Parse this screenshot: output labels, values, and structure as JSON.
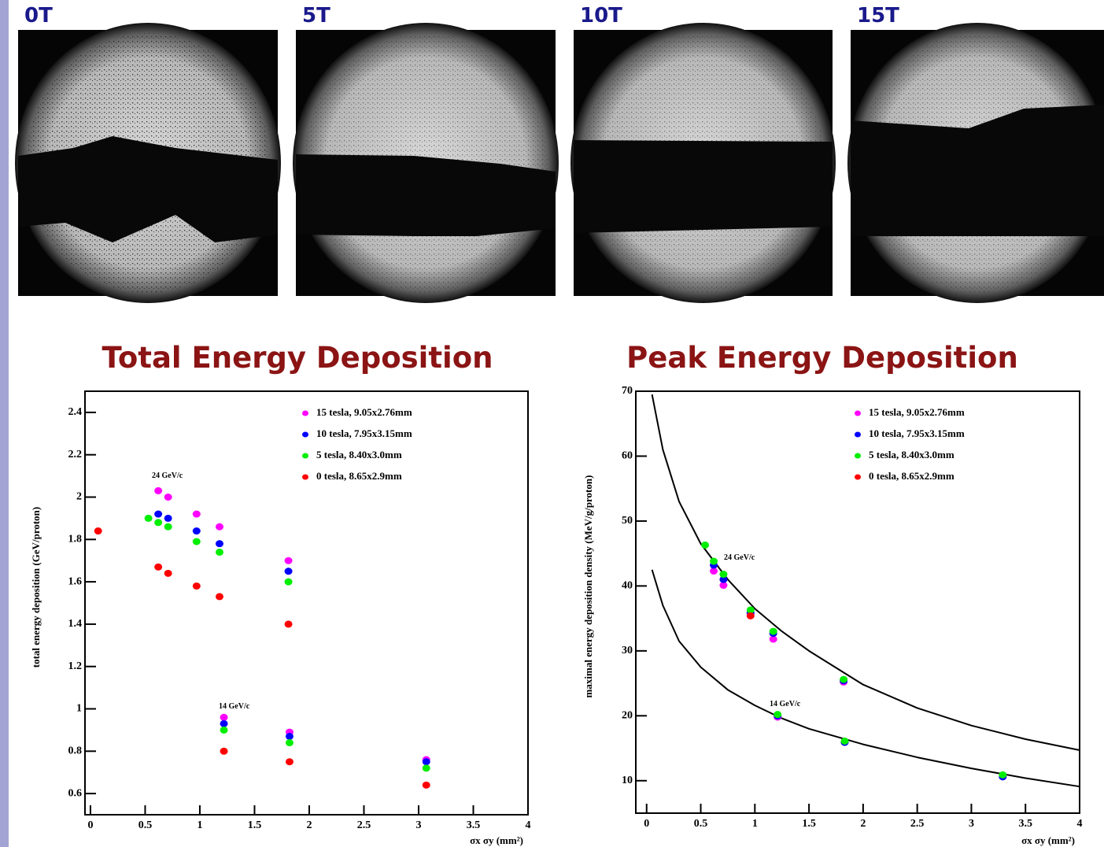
{
  "images": [
    {
      "label": "0T"
    },
    {
      "label": "5T"
    },
    {
      "label": "10T"
    },
    {
      "label": "15T"
    }
  ],
  "chart_data": [
    {
      "type": "scatter",
      "title": "Total Energy Deposition",
      "y_label": "total energy deposition (GeV/proton)",
      "x_label": "σx σy (mm²)",
      "xlim": [
        -0.05,
        4
      ],
      "xticks": [
        0,
        0.5,
        1,
        1.5,
        2,
        2.5,
        3,
        3.5,
        4
      ],
      "ylim": [
        0.5,
        2.5
      ],
      "yticks": [
        0.6,
        0.8,
        1,
        1.2,
        1.4,
        1.6,
        1.8,
        2,
        2.2,
        2.4
      ],
      "grid": false,
      "legend": "upper right",
      "annotations": [
        "24 GeV/c",
        "14 GeV/c"
      ],
      "series": [
        {
          "name": "15 tesla, 9.05x2.76mm",
          "color": "#ff00ff",
          "x": [
            0.62,
            0.71,
            0.97,
            1.18,
            1.81,
            1.22,
            1.82,
            3.07
          ],
          "values": [
            2.03,
            2.0,
            1.92,
            1.86,
            1.7,
            0.96,
            0.89,
            0.76
          ]
        },
        {
          "name": "10 tesla, 7.95x3.15mm",
          "color": "#0000ff",
          "x": [
            0.62,
            0.71,
            0.97,
            1.18,
            1.81,
            1.22,
            1.82,
            3.07
          ],
          "values": [
            1.92,
            1.9,
            1.84,
            1.78,
            1.65,
            0.93,
            0.87,
            0.75
          ]
        },
        {
          "name": "5 tesla, 8.40x3.0mm",
          "color": "#00ee00",
          "x": [
            0.53,
            0.62,
            0.71,
            0.97,
            1.18,
            1.81,
            1.22,
            1.82,
            3.07
          ],
          "values": [
            1.9,
            1.88,
            1.86,
            1.79,
            1.74,
            1.6,
            0.9,
            0.84,
            0.72
          ]
        },
        {
          "name": "0 tesla, 8.65x2.9mm",
          "color": "#ff0000",
          "x": [
            0.07,
            0.62,
            0.71,
            0.97,
            1.18,
            1.81,
            1.22,
            1.82,
            3.07
          ],
          "values": [
            1.84,
            1.67,
            1.64,
            1.58,
            1.53,
            1.4,
            0.8,
            0.75,
            0.64
          ]
        }
      ]
    },
    {
      "type": "scatter",
      "title": "Peak Energy Deposition",
      "y_label": "maximal energy deposition density (MeV/g/proton)",
      "x_label": "σx σy (mm²)",
      "xlim": [
        -0.1,
        4
      ],
      "xticks": [
        0,
        0.5,
        1,
        1.5,
        2,
        2.5,
        3,
        3.5,
        4
      ],
      "ylim": [
        5,
        70
      ],
      "yticks": [
        10,
        20,
        30,
        40,
        50,
        60,
        70
      ],
      "grid": false,
      "legend": "upper right",
      "annotations": [
        "24 GeV/c",
        "14 GeV/c"
      ],
      "series": [
        {
          "name": "15 tesla, 9.05x2.76mm",
          "color": "#ff00ff",
          "x": [
            0.62,
            0.71,
            0.96,
            1.17,
            1.82,
            1.21
          ],
          "values": [
            42.3,
            40.1,
            35.7,
            31.8,
            25.2,
            19.8
          ]
        },
        {
          "name": "10 tesla, 7.95x3.15mm",
          "color": "#0000ff",
          "x": [
            0.62,
            0.71,
            0.96,
            1.17,
            1.82,
            1.21,
            1.83,
            3.29
          ],
          "values": [
            43.2,
            41.0,
            35.9,
            32.7,
            25.4,
            20.0,
            15.9,
            10.6
          ]
        },
        {
          "name": "5 tesla, 8.40x3.0mm",
          "color": "#00ee00",
          "x": [
            0.54,
            0.62,
            0.71,
            0.96,
            1.17,
            1.82,
            1.21,
            1.83,
            3.29
          ],
          "values": [
            46.3,
            43.8,
            41.8,
            36.3,
            33.0,
            25.6,
            20.2,
            16.1,
            10.9
          ]
        },
        {
          "name": "0 tesla, 8.65x2.9mm",
          "color": "#ff0000",
          "x": [
            0.96
          ],
          "values": [
            35.4
          ]
        }
      ],
      "curves": [
        {
          "color": "#000000",
          "x": [
            0.05,
            0.15,
            0.3,
            0.5,
            0.75,
            1,
            1.25,
            1.5,
            2,
            2.5,
            3,
            3.5,
            4
          ],
          "values": [
            69.5,
            61,
            53,
            46.5,
            41,
            36.5,
            33,
            30,
            24.8,
            21.2,
            18.5,
            16.4,
            14.7
          ]
        },
        {
          "color": "#000000",
          "x": [
            0.05,
            0.15,
            0.3,
            0.5,
            0.75,
            1,
            1.25,
            1.5,
            2,
            2.5,
            3,
            3.5,
            4
          ],
          "values": [
            42.5,
            37,
            31.5,
            27.5,
            24,
            21.6,
            19.6,
            18,
            15.6,
            13.6,
            11.9,
            10.4,
            9.1
          ]
        }
      ]
    }
  ]
}
